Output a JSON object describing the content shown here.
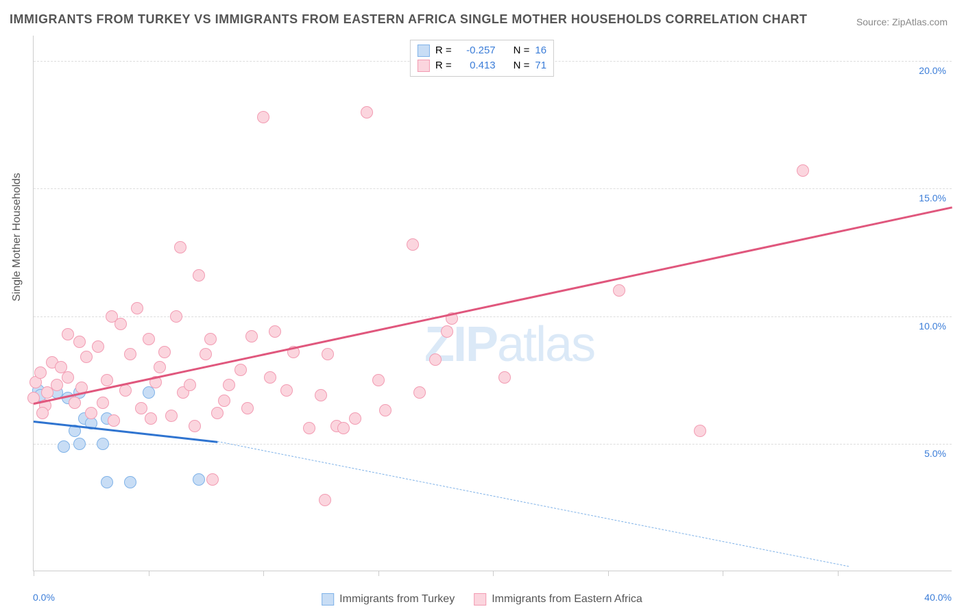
{
  "title": "IMMIGRANTS FROM TURKEY VS IMMIGRANTS FROM EASTERN AFRICA SINGLE MOTHER HOUSEHOLDS CORRELATION CHART",
  "source": "Source: ZipAtlas.com",
  "y_axis_label": "Single Mother Households",
  "watermark_bold": "ZIP",
  "watermark_thin": "atlas",
  "chart": {
    "type": "scatter",
    "xlim": [
      0,
      40
    ],
    "ylim": [
      0,
      21
    ],
    "y_ticks": [
      5,
      10,
      15,
      20
    ],
    "y_tick_labels": [
      "5.0%",
      "10.0%",
      "15.0%",
      "20.0%"
    ],
    "x_ticks": [
      0,
      5,
      10,
      15,
      20,
      25,
      30,
      35
    ],
    "x_left_label": "0.0%",
    "x_right_label": "40.0%",
    "background_color": "#ffffff",
    "grid_color": "#dddddd",
    "point_radius": 9,
    "series": [
      {
        "name": "Immigrants from Turkey",
        "fill": "#c8ddf5",
        "stroke": "#7fb2e8",
        "r_value": "-0.257",
        "n_value": "16",
        "points": [
          [
            0.2,
            7.1
          ],
          [
            0.3,
            6.9
          ],
          [
            1.0,
            7.0
          ],
          [
            1.5,
            6.8
          ],
          [
            2.0,
            7.0
          ],
          [
            2.2,
            6.0
          ],
          [
            1.3,
            4.9
          ],
          [
            2.0,
            5.0
          ],
          [
            2.5,
            5.8
          ],
          [
            3.0,
            5.0
          ],
          [
            3.2,
            6.0
          ],
          [
            5.0,
            7.0
          ],
          [
            3.2,
            3.5
          ],
          [
            4.2,
            3.5
          ],
          [
            7.2,
            3.6
          ],
          [
            1.8,
            5.5
          ]
        ],
        "trend": {
          "x1": 0,
          "y1": 5.9,
          "x2": 8.0,
          "y2": 5.1,
          "color": "#2f74d0",
          "width": 3,
          "dash": false
        },
        "trend_ext": {
          "x1": 8.0,
          "y1": 5.1,
          "x2": 35.5,
          "y2": 0.2,
          "color": "#7fb2e8",
          "width": 1.5,
          "dash": true
        }
      },
      {
        "name": "Immigrants from Eastern Africa",
        "fill": "#fbd5de",
        "stroke": "#f29bb2",
        "r_value": "0.413",
        "n_value": "71",
        "points": [
          [
            0.0,
            6.8
          ],
          [
            0.1,
            7.4
          ],
          [
            0.3,
            7.8
          ],
          [
            0.5,
            6.5
          ],
          [
            0.6,
            7.0
          ],
          [
            0.8,
            8.2
          ],
          [
            1.0,
            7.3
          ],
          [
            1.2,
            8.0
          ],
          [
            1.5,
            9.3
          ],
          [
            1.5,
            7.6
          ],
          [
            1.8,
            6.6
          ],
          [
            2.0,
            9.0
          ],
          [
            2.1,
            7.2
          ],
          [
            2.3,
            8.4
          ],
          [
            2.5,
            6.2
          ],
          [
            2.8,
            8.8
          ],
          [
            3.0,
            6.6
          ],
          [
            3.2,
            7.5
          ],
          [
            3.4,
            10.0
          ],
          [
            3.5,
            5.9
          ],
          [
            3.8,
            9.7
          ],
          [
            4.0,
            7.1
          ],
          [
            4.2,
            8.5
          ],
          [
            4.5,
            10.3
          ],
          [
            4.7,
            6.4
          ],
          [
            5.0,
            9.1
          ],
          [
            5.1,
            6.0
          ],
          [
            5.3,
            7.4
          ],
          [
            5.5,
            8.0
          ],
          [
            5.7,
            8.6
          ],
          [
            6.0,
            6.1
          ],
          [
            6.2,
            10.0
          ],
          [
            6.4,
            12.7
          ],
          [
            6.5,
            7.0
          ],
          [
            6.8,
            7.3
          ],
          [
            7.0,
            5.7
          ],
          [
            7.2,
            11.6
          ],
          [
            7.5,
            8.5
          ],
          [
            7.7,
            9.1
          ],
          [
            8.0,
            6.2
          ],
          [
            8.3,
            6.7
          ],
          [
            8.5,
            7.3
          ],
          [
            7.8,
            3.6
          ],
          [
            9.0,
            7.9
          ],
          [
            9.3,
            6.4
          ],
          [
            9.5,
            9.2
          ],
          [
            10.0,
            17.8
          ],
          [
            10.3,
            7.6
          ],
          [
            10.5,
            9.4
          ],
          [
            11.0,
            7.1
          ],
          [
            11.3,
            8.6
          ],
          [
            12.0,
            5.6
          ],
          [
            12.5,
            6.9
          ],
          [
            12.8,
            8.5
          ],
          [
            13.2,
            5.7
          ],
          [
            13.5,
            5.6
          ],
          [
            14.0,
            6.0
          ],
          [
            14.5,
            18.0
          ],
          [
            15.0,
            7.5
          ],
          [
            15.3,
            6.3
          ],
          [
            16.5,
            12.8
          ],
          [
            16.8,
            7.0
          ],
          [
            17.5,
            8.3
          ],
          [
            18.0,
            9.4
          ],
          [
            18.2,
            9.9
          ],
          [
            20.5,
            7.6
          ],
          [
            12.7,
            2.8
          ],
          [
            25.5,
            11.0
          ],
          [
            29.0,
            5.5
          ],
          [
            33.5,
            15.7
          ],
          [
            0.4,
            6.2
          ]
        ],
        "trend": {
          "x1": 0,
          "y1": 6.6,
          "x2": 40,
          "y2": 14.3,
          "color": "#e0577d",
          "width": 3,
          "dash": false
        }
      }
    ]
  },
  "legend_top": {
    "r_label": "R =",
    "n_label": "N ="
  },
  "bottom_legend": [
    {
      "label": "Immigrants from Turkey",
      "fill": "#c8ddf5",
      "stroke": "#7fb2e8"
    },
    {
      "label": "Immigrants from Eastern Africa",
      "fill": "#fbd5de",
      "stroke": "#f29bb2"
    }
  ]
}
